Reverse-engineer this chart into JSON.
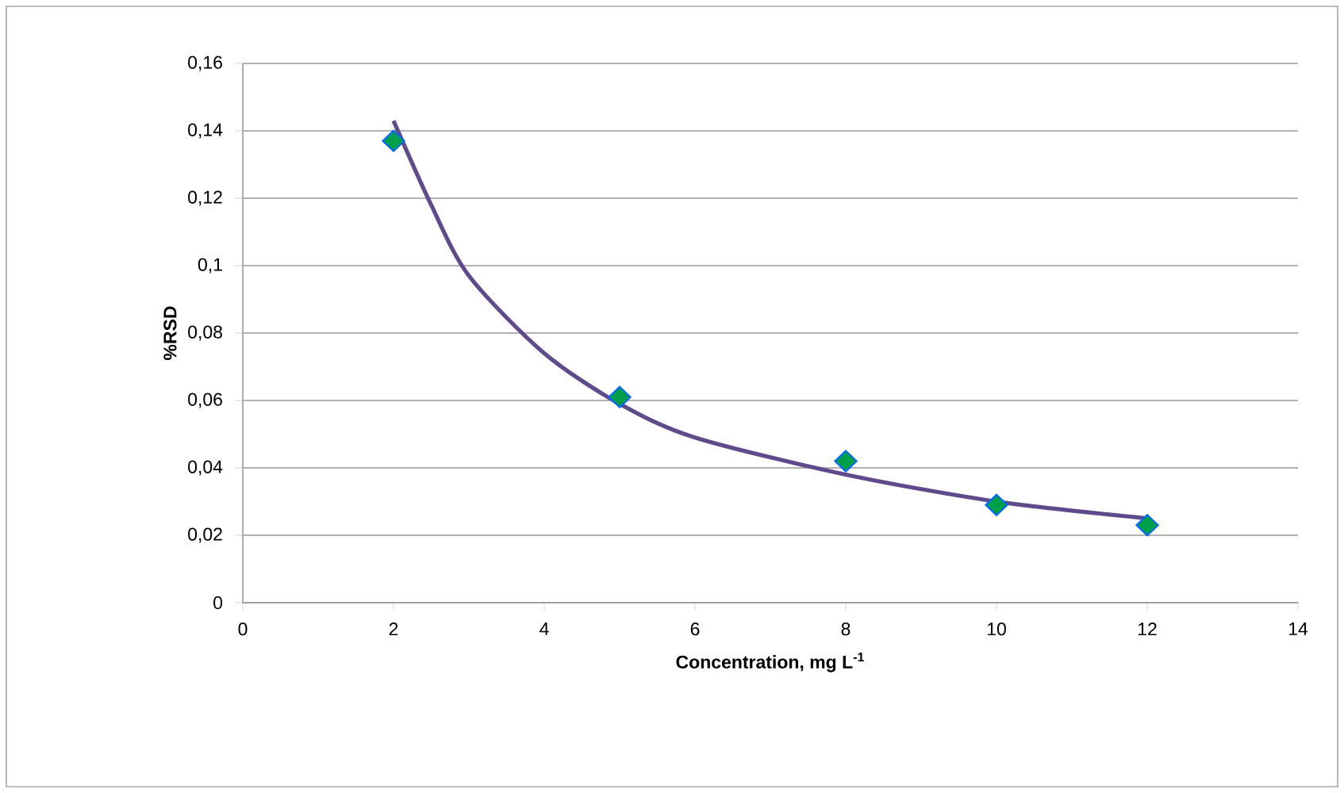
{
  "chart_data": {
    "type": "scatter",
    "xlabel": "Concentration, mg L$^{-1}$",
    "ylabel": "%RSD",
    "xlim": [
      0,
      14
    ],
    "xticks": [
      0,
      2,
      4,
      6,
      8,
      10,
      12,
      14
    ],
    "ylim": [
      0,
      0.16
    ],
    "yticks": [
      {
        "value": 0,
        "label": "0"
      },
      {
        "value": 0.02,
        "label": "0,02"
      },
      {
        "value": 0.04,
        "label": "0,04"
      },
      {
        "value": 0.06,
        "label": "0,06"
      },
      {
        "value": 0.08,
        "label": "0,08"
      },
      {
        "value": 0.1,
        "label": "0,1"
      },
      {
        "value": 0.12,
        "label": "0,12"
      },
      {
        "value": 0.14,
        "label": "0,14"
      },
      {
        "value": 0.16,
        "label": "0,16"
      }
    ],
    "grid": "y",
    "legend": false,
    "series": [
      {
        "color": "#00a04a",
        "marker": "diamond",
        "x": [
          2,
          5,
          8,
          10,
          12
        ],
        "values": [
          0.137,
          0.061,
          0.042,
          0.029,
          0.023
        ]
      },
      {
        "type": "line",
        "color": "#5f4a8b",
        "marker": "none",
        "line_style": "solid",
        "x": [
          2,
          2.5,
          3,
          4,
          5,
          6,
          8,
          10,
          12
        ],
        "values": [
          0.143,
          0.118,
          0.097,
          0.074,
          0.059,
          0.049,
          0.038,
          0.03,
          0.025
        ]
      }
    ]
  }
}
